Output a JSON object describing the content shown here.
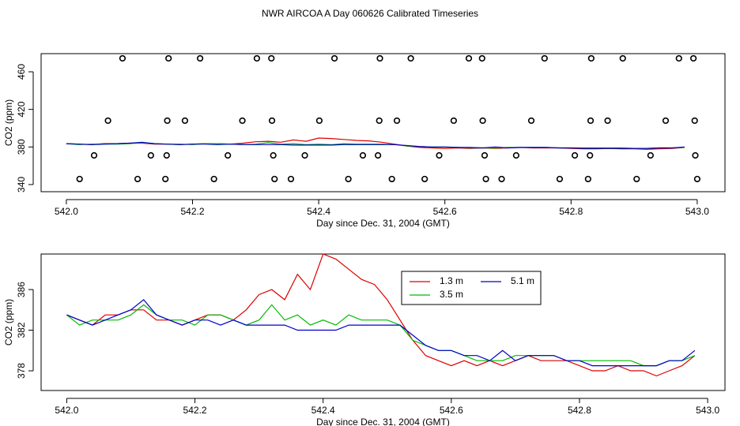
{
  "title": "NWR AIRCOA A  Day 060626  Calibrated Timeseries",
  "chart_data": [
    {
      "type": "line",
      "xlabel": "Day since Dec. 31, 2004 (GMT)",
      "ylabel": "CO2 (ppm)",
      "xlim": [
        541.96,
        543.044
      ],
      "ylim": [
        332.4,
        479.3
      ],
      "xticks": [
        {
          "value": 542,
          "label": "542.0"
        },
        542.2,
        542.4,
        542.6,
        542.8,
        {
          "value": 543,
          "label": "543.0"
        }
      ],
      "yticks": [
        340,
        380,
        420,
        460
      ],
      "x": [
        542.0,
        542.02,
        542.04,
        542.06,
        542.08,
        542.1,
        542.12,
        542.14,
        542.16,
        542.18,
        542.2,
        542.22,
        542.24,
        542.26,
        542.28,
        542.3,
        542.32,
        542.34,
        542.36,
        542.38,
        542.4,
        542.42,
        542.44,
        542.46,
        542.48,
        542.5,
        542.52,
        542.54,
        542.56,
        542.58,
        542.6,
        542.62,
        542.64,
        542.66,
        542.68,
        542.7,
        542.72,
        542.74,
        542.76,
        542.78,
        542.8,
        542.82,
        542.84,
        542.86,
        542.88,
        542.9,
        542.92,
        542.94,
        542.96,
        542.98
      ],
      "series": [
        {
          "color": "#dd0000",
          "values": [
            383.5,
            383,
            382.5,
            383.5,
            383.5,
            384,
            384,
            383,
            383,
            382.5,
            383,
            383.5,
            383.5,
            383,
            384,
            385.5,
            386,
            385,
            387.5,
            386,
            389.5,
            389,
            388,
            387,
            386.5,
            385,
            383,
            381,
            379.5,
            379,
            378.5,
            379,
            378.5,
            379,
            378.5,
            379,
            379.5,
            379,
            379,
            379,
            378.5,
            378,
            378,
            378.5,
            378,
            378,
            377.5,
            378,
            378.5,
            379.5
          ]
        },
        {
          "color": "#00bb00",
          "values": [
            383.5,
            382.5,
            383,
            383,
            383,
            383.5,
            384.5,
            383.5,
            383,
            383,
            382.5,
            383.5,
            383.5,
            383,
            382.5,
            383,
            384.5,
            383,
            383.5,
            382.5,
            383,
            382.5,
            383.5,
            383,
            383,
            383,
            382.5,
            381,
            380.5,
            380,
            380,
            379.5,
            379,
            379,
            379,
            379.5,
            379.5,
            379.5,
            379.5,
            379,
            379,
            379,
            379,
            379,
            379,
            378.5,
            378.5,
            379,
            379,
            379.5
          ]
        },
        {
          "color": "#0000cc",
          "values": [
            383.5,
            383,
            382.5,
            383,
            383.5,
            384,
            385,
            383.5,
            383,
            382.5,
            383,
            383,
            382.5,
            383,
            382.5,
            382.5,
            382.5,
            382.5,
            382,
            382,
            382,
            382,
            382.5,
            382.5,
            382.5,
            382.5,
            382.5,
            381.5,
            380.5,
            380,
            380,
            379.5,
            379.5,
            379,
            380,
            379,
            379.5,
            379.5,
            379.5,
            379,
            379,
            378.5,
            378.5,
            378.5,
            378.5,
            378.5,
            378.5,
            379,
            379,
            380
          ]
        }
      ],
      "points": {
        "x": [
          542.089,
          542.162,
          542.212,
          542.302,
          542.325,
          542.425,
          542.497,
          542.546,
          542.638,
          542.659,
          542.758,
          542.832,
          542.882,
          542.971,
          542.994,
          542.066,
          542.16,
          542.188,
          542.279,
          542.326,
          542.401,
          542.496,
          542.524,
          542.614,
          542.66,
          542.737,
          542.831,
          542.858,
          542.95,
          542.996,
          542.044,
          542.134,
          542.159,
          542.256,
          542.328,
          542.378,
          542.47,
          542.494,
          542.591,
          542.663,
          542.713,
          542.806,
          542.83,
          542.926,
          542.997,
          542.021,
          542.113,
          542.157,
          542.234,
          542.33,
          542.356,
          542.447,
          542.516,
          542.568,
          542.665,
          542.69,
          542.782,
          542.827,
          542.904,
          543.0
        ],
        "y": [
          474.3,
          474.3,
          474.3,
          474.3,
          474.3,
          474.3,
          474.3,
          474.3,
          474.3,
          474.3,
          474.3,
          474.3,
          474.3,
          474.3,
          474.3,
          408,
          408,
          408,
          408,
          408,
          408,
          408,
          408,
          408,
          408,
          408,
          408,
          408,
          408,
          408,
          371,
          371,
          371,
          371,
          371,
          371,
          371,
          371,
          371,
          371,
          371,
          371,
          371,
          371,
          371,
          345.9,
          345.9,
          345.9,
          345.9,
          345.9,
          345.9,
          345.9,
          345.9,
          345.9,
          345.9,
          345.9,
          345.9,
          345.9,
          345.9,
          345.9
        ]
      }
    },
    {
      "type": "line",
      "xlabel": "Day since Dec. 31, 2004 (GMT)",
      "ylabel": "CO2 (ppm)",
      "xlim": [
        541.96,
        543.027
      ],
      "ylim": [
        376.06,
        389.5
      ],
      "xticks": [
        {
          "value": 542,
          "label": "542.0"
        },
        542.2,
        542.4,
        542.6,
        542.8,
        {
          "value": 543,
          "label": "543.0"
        }
      ],
      "yticks": [
        378,
        382,
        386
      ],
      "legend": "top",
      "x": [
        542.0,
        542.02,
        542.04,
        542.06,
        542.08,
        542.1,
        542.12,
        542.14,
        542.16,
        542.18,
        542.2,
        542.22,
        542.24,
        542.26,
        542.28,
        542.3,
        542.32,
        542.34,
        542.36,
        542.38,
        542.4,
        542.42,
        542.44,
        542.46,
        542.48,
        542.5,
        542.52,
        542.54,
        542.56,
        542.58,
        542.6,
        542.62,
        542.64,
        542.66,
        542.68,
        542.7,
        542.72,
        542.74,
        542.76,
        542.78,
        542.8,
        542.82,
        542.84,
        542.86,
        542.88,
        542.9,
        542.92,
        542.94,
        542.96,
        542.98
      ],
      "series": [
        {
          "name": "1.3 m",
          "color": "#dd0000",
          "values": [
            383.5,
            383,
            382.5,
            383.5,
            383.5,
            384,
            384,
            383,
            383,
            382.5,
            383,
            383.5,
            383.5,
            383,
            384,
            385.5,
            386,
            385,
            387.5,
            386,
            389.5,
            389,
            388,
            387,
            386.5,
            385,
            383,
            381,
            379.5,
            379,
            378.5,
            379,
            378.5,
            379,
            378.5,
            379,
            379.5,
            379,
            379,
            379,
            378.5,
            378,
            378,
            378.5,
            378,
            378,
            377.5,
            378,
            378.5,
            379.5
          ]
        },
        {
          "name": "3.5 m",
          "color": "#00bb00",
          "values": [
            383.5,
            382.5,
            383,
            383,
            383,
            383.5,
            384.5,
            383.5,
            383,
            383,
            382.5,
            383.5,
            383.5,
            383,
            382.5,
            383,
            384.5,
            383,
            383.5,
            382.5,
            383,
            382.5,
            383.5,
            383,
            383,
            383,
            382.5,
            381,
            380.5,
            380,
            380,
            379.5,
            379,
            379,
            379,
            379.5,
            379.5,
            379.5,
            379.5,
            379,
            379,
            379,
            379,
            379,
            379,
            378.5,
            378.5,
            379,
            379,
            379.5
          ]
        },
        {
          "name": "5.1 m",
          "color": "#0000cc",
          "values": [
            383.5,
            383,
            382.5,
            383,
            383.5,
            384,
            385,
            383.5,
            383,
            382.5,
            383,
            383,
            382.5,
            383,
            382.5,
            382.5,
            382.5,
            382.5,
            382,
            382,
            382,
            382,
            382.5,
            382.5,
            382.5,
            382.5,
            382.5,
            381.5,
            380.5,
            380,
            380,
            379.5,
            379.5,
            379,
            380,
            379,
            379.5,
            379.5,
            379.5,
            379,
            379,
            378.5,
            378.5,
            378.5,
            378.5,
            378.5,
            378.5,
            379,
            379,
            380
          ]
        }
      ]
    }
  ]
}
